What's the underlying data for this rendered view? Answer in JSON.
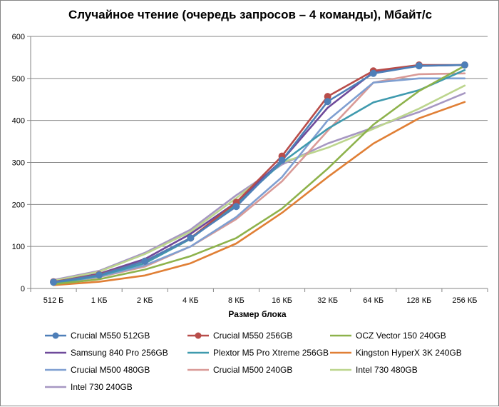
{
  "chart_data": {
    "type": "line",
    "title": "Случайное чтение (очередь запросов – 4 команды), Мбайт/с",
    "xlabel": "Размер блока",
    "ylabel": "",
    "ylim": [
      0,
      600
    ],
    "yticks": [
      "0",
      "100",
      "200",
      "300",
      "400",
      "500",
      "600"
    ],
    "grid": true,
    "legend_position": "bottom",
    "categories": [
      "512 Б",
      "1 КБ",
      "2 КБ",
      "4 КБ",
      "8 КБ",
      "16 КБ",
      "32 КБ",
      "64 КБ",
      "128 КБ",
      "256 КБ"
    ],
    "series": [
      {
        "name": "Crucial M550 512GB",
        "color": "#4e7fb8",
        "marker": "circle",
        "values": [
          15,
          32,
          65,
          120,
          195,
          305,
          445,
          512,
          530,
          532
        ]
      },
      {
        "name": "Crucial M550 256GB",
        "color": "#b84d4a",
        "marker": "circle",
        "values": [
          16,
          33,
          65,
          120,
          205,
          315,
          457,
          518,
          532,
          532
        ]
      },
      {
        "name": "OCZ Vector 150 240GB",
        "color": "#8db24b",
        "marker": "none",
        "values": [
          10,
          22,
          45,
          77,
          120,
          190,
          285,
          390,
          470,
          530
        ]
      },
      {
        "name": "Samsung 840 Pro 256GB",
        "color": "#6f4a9a",
        "marker": "none",
        "values": [
          15,
          35,
          70,
          130,
          205,
          305,
          430,
          515,
          530,
          532
        ]
      },
      {
        "name": "Plextor M5 Pro Xtreme 256GB",
        "color": "#3f9aae",
        "marker": "none",
        "values": [
          12,
          30,
          60,
          118,
          200,
          300,
          380,
          443,
          472,
          520
        ]
      },
      {
        "name": "Kingston HyperX 3K 240GB",
        "color": "#e07f35",
        "marker": "none",
        "values": [
          8,
          16,
          31,
          60,
          107,
          180,
          265,
          345,
          405,
          444
        ]
      },
      {
        "name": "Crucial M500 480GB",
        "color": "#7f9fd1",
        "marker": "none",
        "values": [
          12,
          28,
          55,
          100,
          170,
          265,
          400,
          490,
          500,
          500
        ]
      },
      {
        "name": "Crucial M500 240GB",
        "color": "#d99a97",
        "marker": "none",
        "values": [
          12,
          27,
          52,
          100,
          165,
          255,
          375,
          490,
          510,
          512
        ]
      },
      {
        "name": "Intel 730 480GB",
        "color": "#bcd58d",
        "marker": "none",
        "values": [
          18,
          40,
          82,
          135,
          215,
          300,
          335,
          380,
          428,
          483
        ]
      },
      {
        "name": "Intel 730 240GB",
        "color": "#a697c2",
        "marker": "none",
        "values": [
          20,
          42,
          85,
          140,
          222,
          295,
          345,
          383,
          420,
          465
        ]
      }
    ]
  }
}
